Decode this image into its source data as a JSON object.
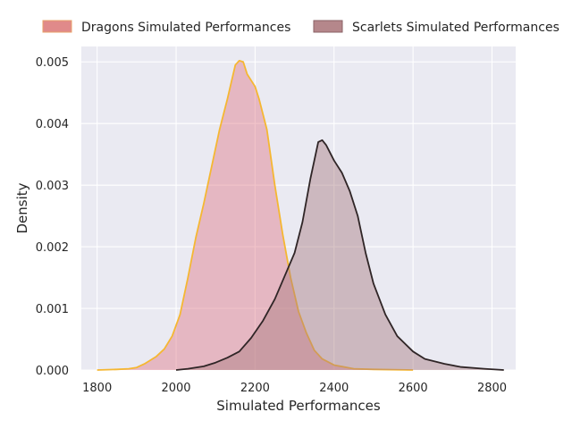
{
  "chart_data": {
    "type": "area",
    "xlabel": "Simulated Performances",
    "ylabel": "Density",
    "xlim": [
      1760,
      2860
    ],
    "ylim": [
      0,
      0.00525
    ],
    "xticks": [
      1800,
      2000,
      2200,
      2400,
      2600,
      2800
    ],
    "yticks": [
      0,
      0.001,
      0.002,
      0.003,
      0.004,
      0.005
    ],
    "xtick_labels": [
      "1800",
      "2000",
      "2200",
      "2400",
      "2600",
      "2800"
    ],
    "ytick_labels": [
      "0.000",
      "0.001",
      "0.002",
      "0.003",
      "0.004",
      "0.005"
    ],
    "grid": true,
    "background": "#eaeaf2",
    "legend_position": "top, above plot",
    "series": [
      {
        "name": "Dragons Simulated Performances",
        "fill": "#e17a88",
        "line": "#f5b732",
        "legend_fill": "#e08a8a",
        "points": [
          [
            1800,
            0.0
          ],
          [
            1850,
            1e-05
          ],
          [
            1880,
            2e-05
          ],
          [
            1900,
            4e-05
          ],
          [
            1920,
            0.0001
          ],
          [
            1950,
            0.00022
          ],
          [
            1970,
            0.00034
          ],
          [
            1990,
            0.00055
          ],
          [
            2010,
            0.0009
          ],
          [
            2030,
            0.0015
          ],
          [
            2050,
            0.00215
          ],
          [
            2070,
            0.0027
          ],
          [
            2090,
            0.0033
          ],
          [
            2110,
            0.0039
          ],
          [
            2130,
            0.0044
          ],
          [
            2150,
            0.00495
          ],
          [
            2160,
            0.00502
          ],
          [
            2170,
            0.005
          ],
          [
            2180,
            0.0048
          ],
          [
            2200,
            0.0046
          ],
          [
            2210,
            0.0044
          ],
          [
            2230,
            0.0039
          ],
          [
            2250,
            0.003
          ],
          [
            2270,
            0.0022
          ],
          [
            2290,
            0.0015
          ],
          [
            2310,
            0.00095
          ],
          [
            2330,
            0.0006
          ],
          [
            2350,
            0.00032
          ],
          [
            2370,
            0.00018
          ],
          [
            2400,
            8e-05
          ],
          [
            2450,
            2e-05
          ],
          [
            2500,
            1e-05
          ],
          [
            2600,
            0.0
          ]
        ]
      },
      {
        "name": "Scarlets Simulated Performances",
        "fill": "#a87c80",
        "line": "#2f2526",
        "legend_fill": "#b5878b",
        "points": [
          [
            2000,
            0.0
          ],
          [
            2030,
            2e-05
          ],
          [
            2070,
            6e-05
          ],
          [
            2100,
            0.00012
          ],
          [
            2130,
            0.0002
          ],
          [
            2160,
            0.0003
          ],
          [
            2190,
            0.00052
          ],
          [
            2220,
            0.0008
          ],
          [
            2250,
            0.00115
          ],
          [
            2280,
            0.0016
          ],
          [
            2300,
            0.0019
          ],
          [
            2320,
            0.0024
          ],
          [
            2340,
            0.0031
          ],
          [
            2360,
            0.0037
          ],
          [
            2370,
            0.00373
          ],
          [
            2380,
            0.00365
          ],
          [
            2400,
            0.0034
          ],
          [
            2420,
            0.0032
          ],
          [
            2440,
            0.0029
          ],
          [
            2460,
            0.0025
          ],
          [
            2480,
            0.0019
          ],
          [
            2500,
            0.0014
          ],
          [
            2530,
            0.0009
          ],
          [
            2560,
            0.00055
          ],
          [
            2600,
            0.0003
          ],
          [
            2630,
            0.00018
          ],
          [
            2680,
            0.0001
          ],
          [
            2720,
            5e-05
          ],
          [
            2780,
            2e-05
          ],
          [
            2830,
            0.0
          ]
        ]
      }
    ]
  }
}
